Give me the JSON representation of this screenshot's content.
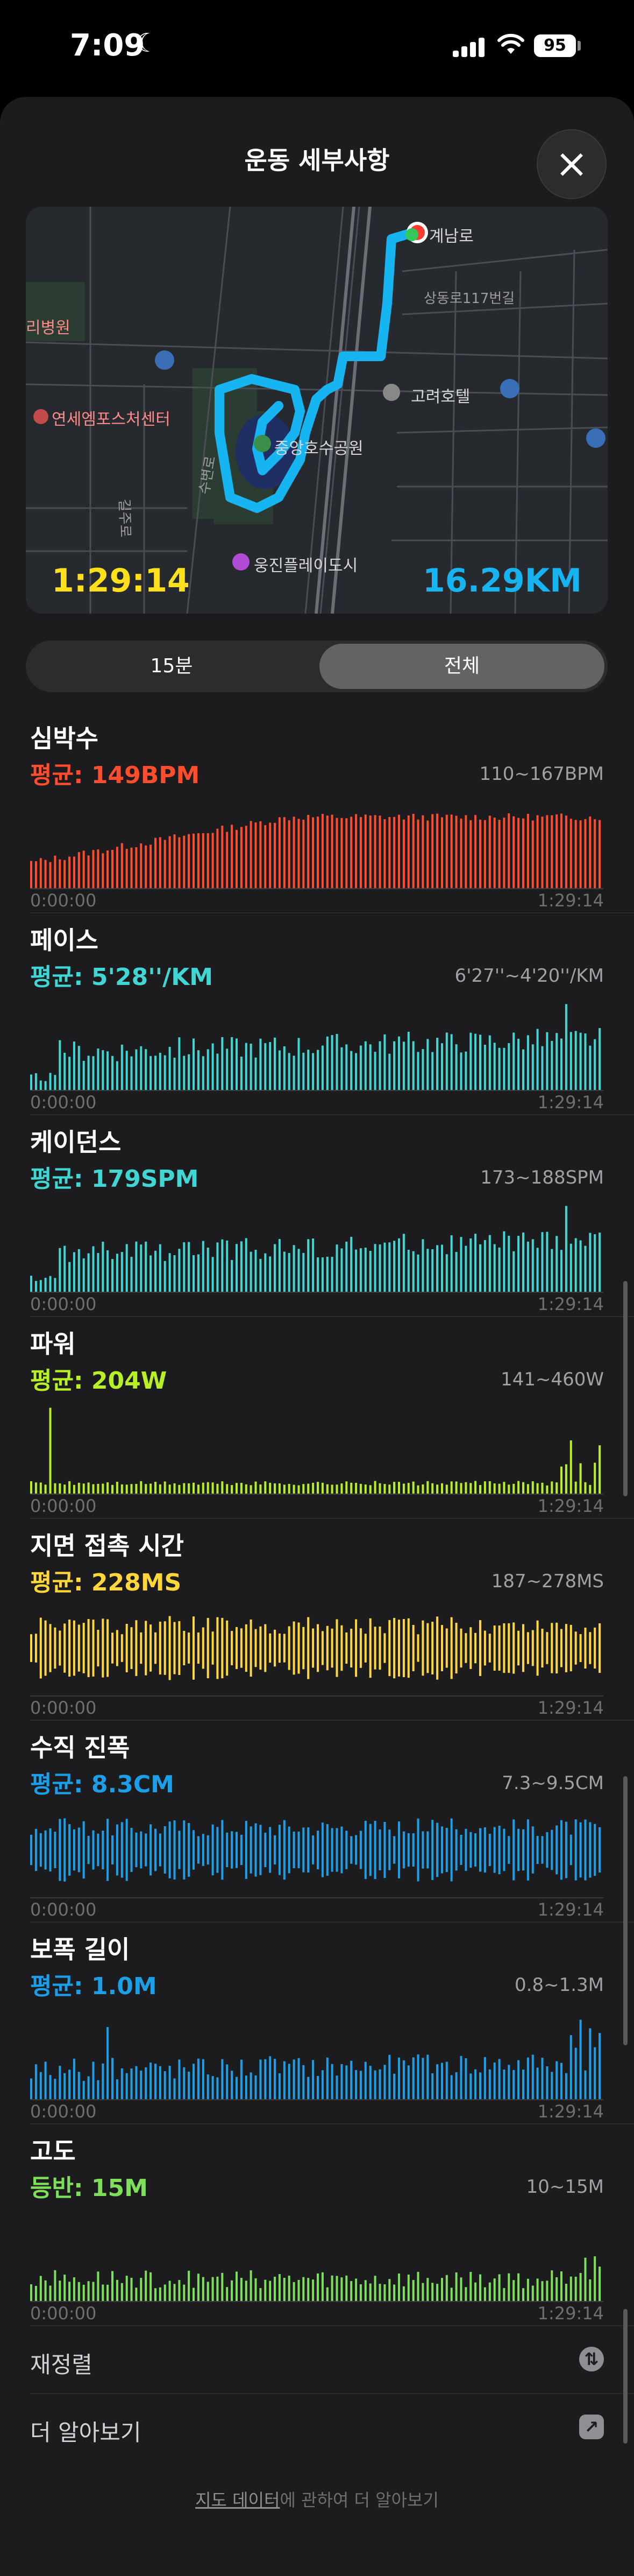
{
  "status_bar": {
    "time": "7:09",
    "battery": "95"
  },
  "sheet": {
    "title": "운동 세부사항"
  },
  "map": {
    "labels": {
      "road1": "계남로",
      "road2": "상동로117번길",
      "hospital": "리병원",
      "hotel": "고려호텔",
      "sports": "연세엠포스처센터",
      "park": "중앙호수공원",
      "city": "웅진플레이도시",
      "road3": "길주로",
      "road4": "수변로"
    },
    "duration": "1:29:14",
    "distance": "16.29KM"
  },
  "segments": [
    {
      "label": "15분",
      "selected": false
    },
    {
      "label": "전체",
      "selected": true
    }
  ],
  "metrics": [
    {
      "title": "심박수",
      "avg": "평균: 149BPM",
      "range": "110~167BPM",
      "start": "0:00:00",
      "end": "1:29:14",
      "color": "#ff4d2e",
      "style": "line"
    },
    {
      "title": "페이스",
      "avg": "평균: 5'28''/KM",
      "range": "6'27''~4'20''/KM",
      "start": "0:00:00",
      "end": "1:29:14",
      "color": "#3fd6d3",
      "style": "bars"
    },
    {
      "title": "케이던스",
      "avg": "평균: 179SPM",
      "range": "173~188SPM",
      "start": "0:00:00",
      "end": "1:29:14",
      "color": "#3fd6d3",
      "style": "bars"
    },
    {
      "title": "파워",
      "avg": "평균: 204W",
      "range": "141~460W",
      "start": "0:00:00",
      "end": "1:29:14",
      "color": "#b8f023",
      "style": "low"
    },
    {
      "title": "지면 접촉 시간",
      "avg": "평균: 228MS",
      "range": "187~278MS",
      "start": "0:00:00",
      "end": "1:29:14",
      "color": "#ffd73a",
      "style": "mid"
    },
    {
      "title": "수직 진폭",
      "avg": "평균: 8.3CM",
      "range": "7.3~9.5CM",
      "start": "0:00:00",
      "end": "1:29:14",
      "color": "#1a9fe8",
      "style": "mid"
    },
    {
      "title": "보폭 길이",
      "avg": "평균: 1.0M",
      "range": "0.8~1.3M",
      "start": "0:00:00",
      "end": "1:29:14",
      "color": "#1a9fe8",
      "style": "lowmid"
    },
    {
      "title": "고도",
      "avg": "등반: 15M",
      "range": "10~15M",
      "start": "0:00:00",
      "end": "1:29:14",
      "color": "#7ee05a",
      "style": "elev"
    }
  ],
  "list": {
    "reorder": "재정렬",
    "learn_more": "더 알아보기"
  },
  "footer": {
    "link": "지도 데이터",
    "rest": "에 관하여 더 알아보기"
  }
}
